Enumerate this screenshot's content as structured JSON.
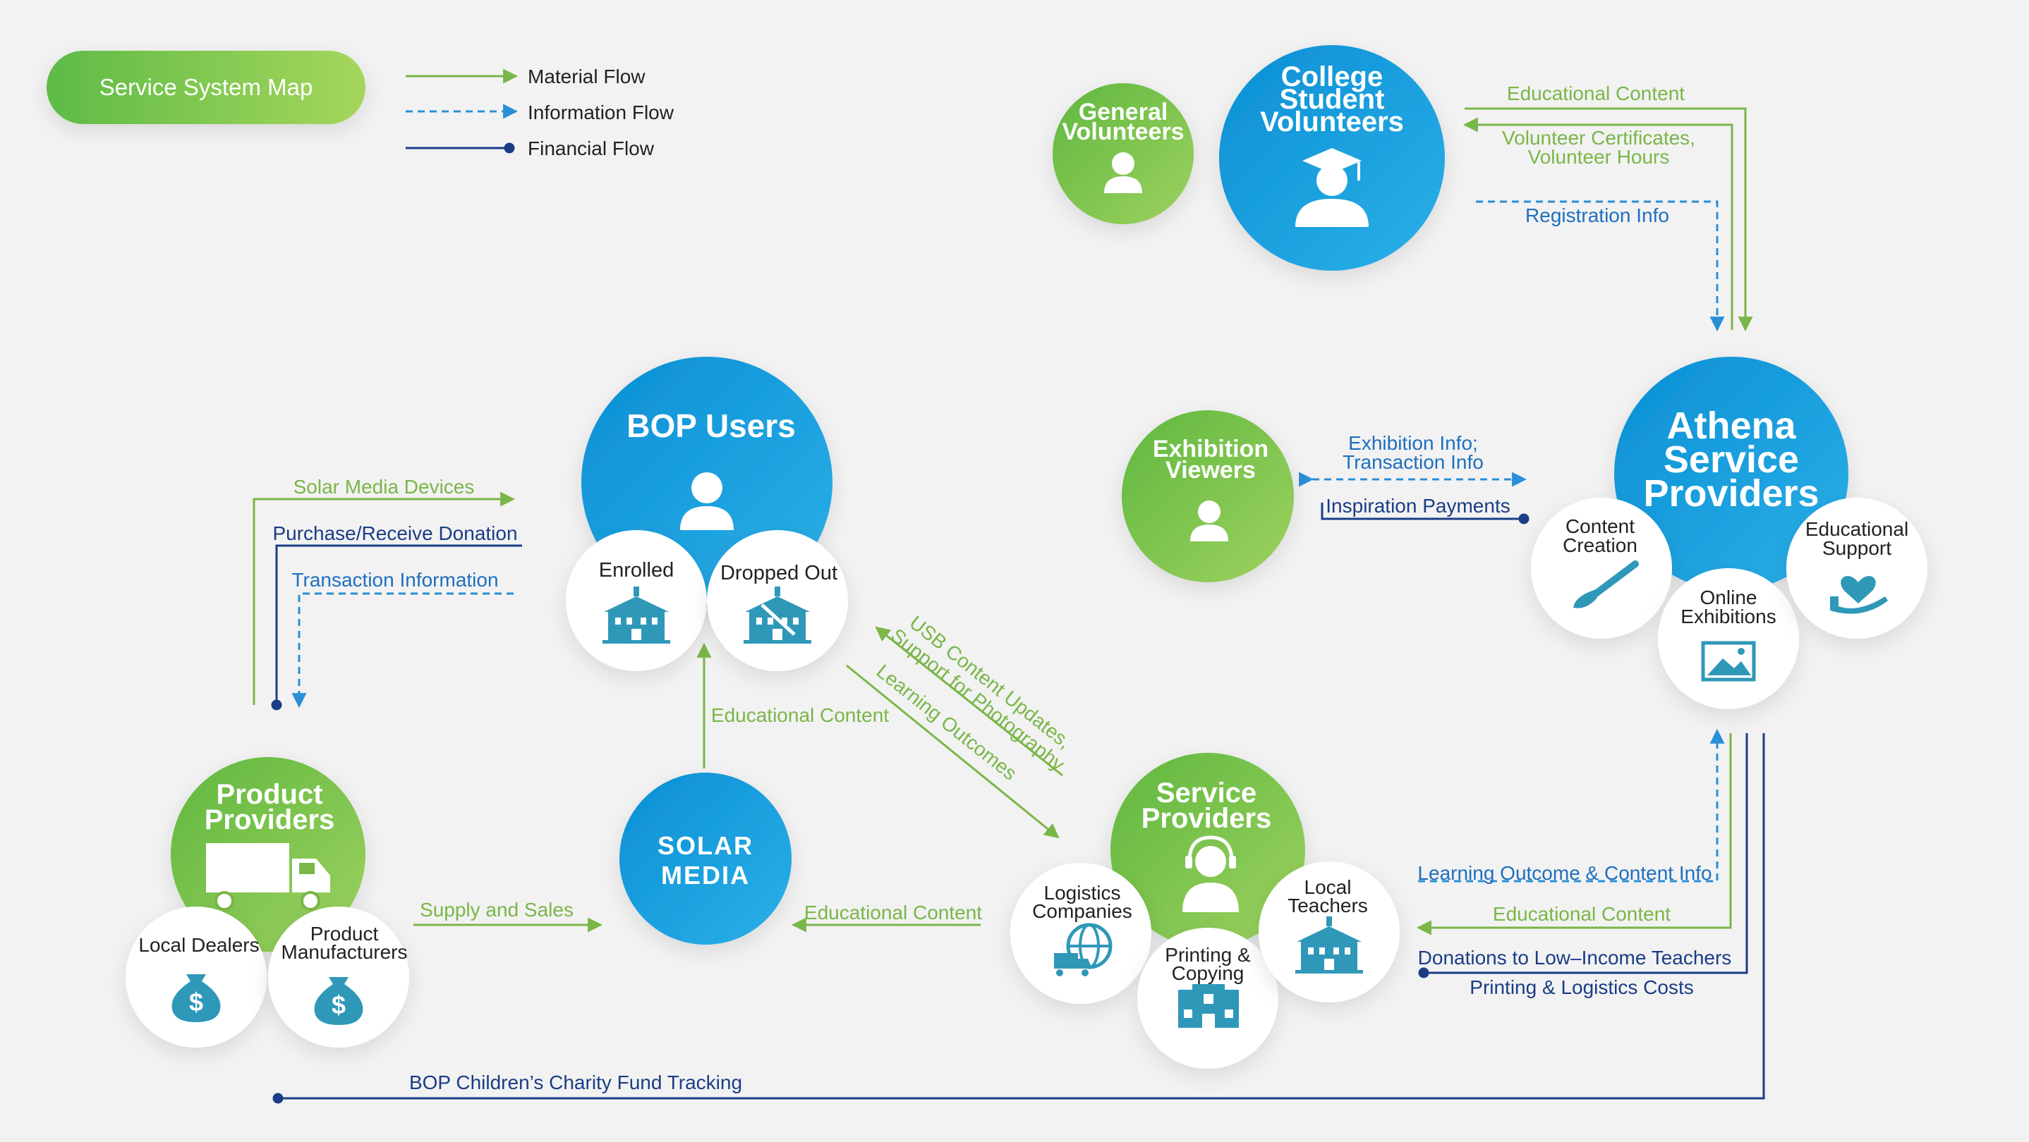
{
  "title": "Service System Map",
  "legend": {
    "material": "Material Flow",
    "information": "Information Flow",
    "financial": "Financial Flow"
  },
  "colors": {
    "material": "#7ab648",
    "information": "#2a8fd6",
    "financial": "#1a3d86",
    "green_node": "#6cc04a",
    "blue_node": "#1b96dc",
    "icon_teal": "#2f98b8",
    "background": "#f2f2f2"
  },
  "nodes": {
    "general_volunteers": {
      "line1": "General",
      "line2": "Volunteers",
      "icon": "person-icon"
    },
    "college_volunteers": {
      "line1": "College",
      "line2": "Student",
      "line3": "Volunteers",
      "icon": "graduate-icon"
    },
    "bop_users": {
      "label": "BOP Users",
      "icon": "person-icon",
      "enrolled": "Enrolled",
      "dropped_out": "Dropped Out"
    },
    "exhibition_viewers": {
      "line1": "Exhibition",
      "line2": "Viewers",
      "icon": "person-icon"
    },
    "athena": {
      "line1": "Athena",
      "line2": "Service",
      "line3": "Providers",
      "content_creation_1": "Content",
      "content_creation_2": "Creation",
      "online_exhibitions_1": "Online",
      "online_exhibitions_2": "Exhibitions",
      "educational_support_1": "Educational",
      "educational_support_2": "Support"
    },
    "product_providers": {
      "line1": "Product",
      "line2": "Providers",
      "icon": "truck-icon",
      "local_dealers": "Local Dealers",
      "manufacturers_1": "Product",
      "manufacturers_2": "Manufacturers"
    },
    "solar_media": {
      "line1": "SOLAR",
      "line2": "MEDIA"
    },
    "service_providers": {
      "line1": "Service",
      "line2": "Providers",
      "icon": "headset-icon",
      "logistics_1": "Logistics",
      "logistics_2": "Companies",
      "printing_1": "Printing &",
      "printing_2": "Copying",
      "teachers_1": "Local",
      "teachers_2": "Teachers"
    }
  },
  "flows": {
    "edu_content_college": "Educational Content",
    "volunteer_certs_1": "Volunteer Certificates,",
    "volunteer_certs_2": "Volunteer Hours",
    "registration_info": "Registration Info",
    "exhibition_info_1": "Exhibition Info;",
    "exhibition_info_2": "Transaction Info",
    "inspiration_payments": "Inspiration Payments",
    "solar_media_devices": "Solar Media Devices",
    "purchase_donation": "Purchase/Receive Donation",
    "transaction_information": "Transaction Information",
    "edu_content_solar_bop": "Educational Content",
    "usb_updates_1": "USB Content Updates,",
    "usb_updates_2": "Support for Photography",
    "learning_outcomes": "Learning Outcomes",
    "supply_sales": "Supply and Sales",
    "edu_content_service_solar": "Educational Content",
    "learning_outcome_content_info": "Learning Outcome & Content Info",
    "edu_content_athena_service": "Educational Content",
    "donations_teachers": "Donations to Low–Income Teachers",
    "printing_logistics_costs": "Printing & Logistics Costs",
    "charity_fund_tracking": "BOP Children’s Charity Fund Tracking"
  }
}
